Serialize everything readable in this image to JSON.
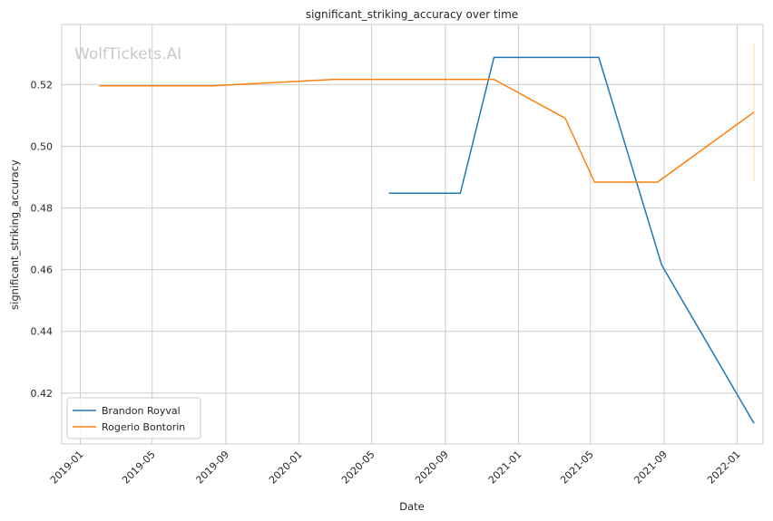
{
  "chart_data": {
    "type": "line",
    "title": "significant_striking_accuracy over time",
    "xlabel": "Date",
    "ylabel": "significant_striking_accuracy",
    "watermark": "WolfTickets.AI",
    "x_range": [
      "2018-12-01",
      "2022-02-13"
    ],
    "ylim": [
      0.4035,
      0.5395
    ],
    "x_ticks": [
      "2019-01",
      "2019-05",
      "2019-09",
      "2020-01",
      "2020-05",
      "2020-09",
      "2021-01",
      "2021-05",
      "2021-09",
      "2022-01"
    ],
    "y_ticks": [
      "0.42",
      "0.44",
      "0.46",
      "0.48",
      "0.50",
      "0.52"
    ],
    "grid": true,
    "legend_position": "lower-left",
    "series": [
      {
        "name": "Brandon Royval",
        "color": "#1f77b4",
        "points": [
          {
            "x": "2020-05-30",
            "y": 0.4848
          },
          {
            "x": "2020-09-26",
            "y": 0.4848
          },
          {
            "x": "2020-11-21",
            "y": 0.5288
          },
          {
            "x": "2021-05-15",
            "y": 0.5288
          },
          {
            "x": "2021-08-28",
            "y": 0.4615
          },
          {
            "x": "2022-01-29",
            "y": 0.4102
          }
        ]
      },
      {
        "name": "Rogerio Bontorin",
        "color": "#ff7f0e",
        "points": [
          {
            "x": "2019-02-02",
            "y": 0.5196
          },
          {
            "x": "2019-08-10",
            "y": 0.5196
          },
          {
            "x": "2020-02-29",
            "y": 0.5217
          },
          {
            "x": "2020-11-21",
            "y": 0.5217
          },
          {
            "x": "2021-03-20",
            "y": 0.5091
          },
          {
            "x": "2021-05-08",
            "y": 0.4884
          },
          {
            "x": "2021-08-21",
            "y": 0.4884
          },
          {
            "x": "2022-01-29",
            "y": 0.5111
          }
        ]
      }
    ],
    "annotations": [
      {
        "type": "error-bar",
        "x": "2022-01-29",
        "y_low": 0.4884,
        "y_high": 0.5333,
        "color": "#ff7f0e"
      }
    ]
  }
}
